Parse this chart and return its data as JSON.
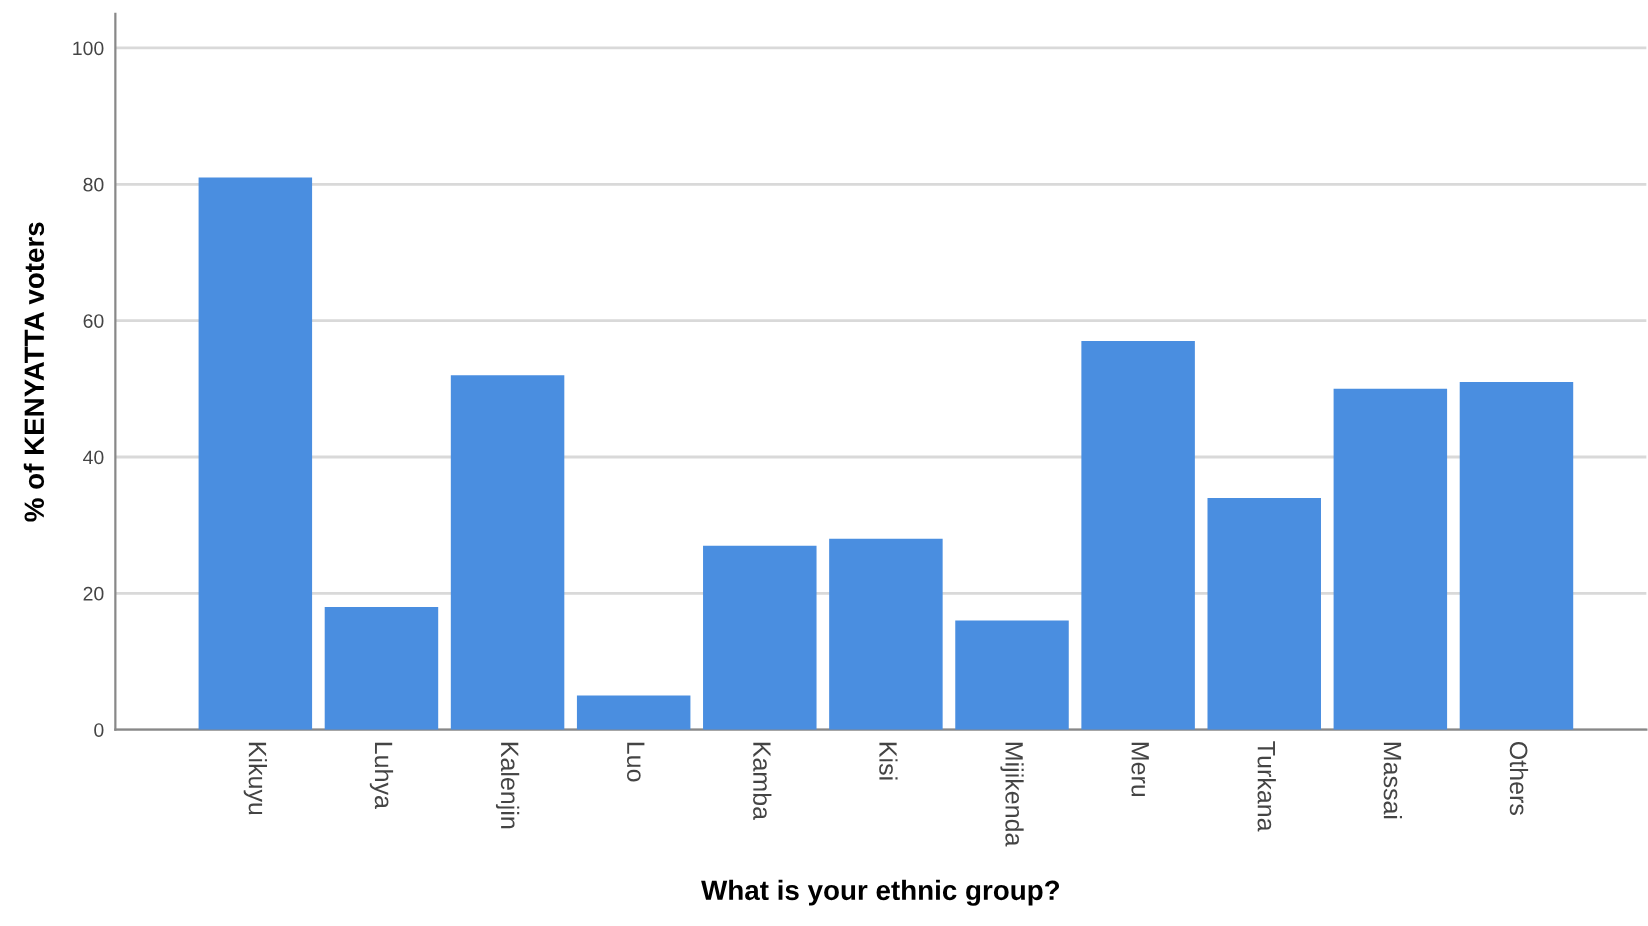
{
  "chart_data": {
    "type": "bar",
    "xlabel": "What is your ethnic group?",
    "ylabel": "% of KENYATTA voters",
    "categories": [
      "Kikuyu",
      "Luhya",
      "Kalenjin",
      "Luo",
      "Kamba",
      "Kisi",
      "Mijikenda",
      "Meru",
      "Turkana",
      "Massai",
      "Others"
    ],
    "values": [
      81,
      18,
      52,
      5,
      27,
      28,
      16,
      57,
      34,
      50,
      51
    ],
    "color": "#4a8ee0",
    "ylim": [
      0,
      105
    ],
    "yticks": [
      0,
      20,
      40,
      60,
      80,
      100
    ],
    "grid": "y",
    "legend": false
  }
}
